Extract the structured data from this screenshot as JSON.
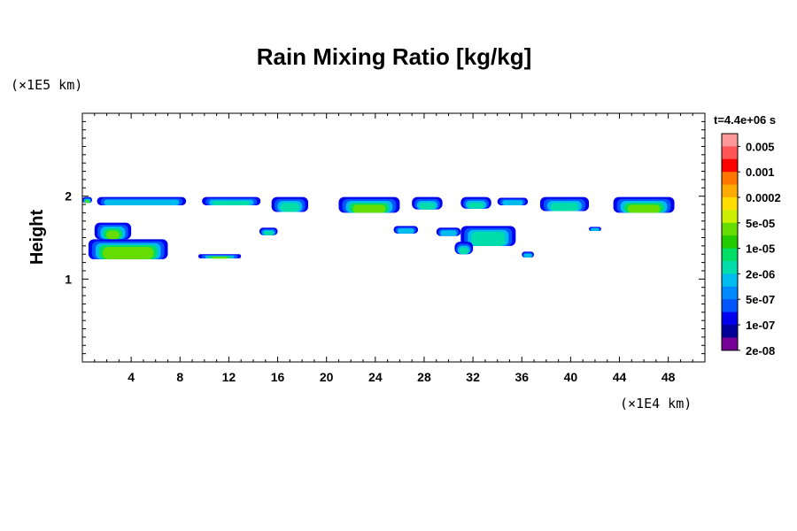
{
  "chart_data": {
    "type": "heatmap",
    "title": "Rain Mixing Ratio [kg/kg]",
    "ylabel": "Height",
    "y_unit": "(×1E5 km)",
    "x_unit": "(×1E4 km)",
    "time_label": "t=4.4e+06 s",
    "xlim": [
      0,
      51
    ],
    "ylim": [
      0,
      3
    ],
    "x_ticks": [
      "4",
      "8",
      "12",
      "16",
      "20",
      "24",
      "28",
      "32",
      "36",
      "40",
      "44",
      "48"
    ],
    "y_ticks": [
      "1",
      "2"
    ],
    "colorbar": {
      "colors": [
        "#ff9999",
        "#ff5555",
        "#ff0000",
        "#ff7700",
        "#ffaa00",
        "#ffdd00",
        "#ccee00",
        "#66dd00",
        "#22cc00",
        "#00dd66",
        "#00ddaa",
        "#00bbee",
        "#0088ff",
        "#0055ff",
        "#0000ee",
        "#000099",
        "#770099"
      ],
      "labels": [
        "0.005",
        "0.001",
        "0.0002",
        "5e-05",
        "1e-05",
        "2e-06",
        "5e-07",
        "1e-07",
        "2e-08"
      ]
    },
    "features": [
      {
        "x0": 0.0,
        "x1": 0.8,
        "y0": 1.92,
        "y1": 1.99,
        "level": "high"
      },
      {
        "x0": 1.2,
        "x1": 8.5,
        "y0": 1.89,
        "y1": 1.99,
        "level": "low"
      },
      {
        "x0": 9.8,
        "x1": 14.6,
        "y0": 1.89,
        "y1": 1.99,
        "level": "mid"
      },
      {
        "x0": 15.5,
        "x1": 18.5,
        "y0": 1.81,
        "y1": 1.99,
        "level": "mid"
      },
      {
        "x0": 21.0,
        "x1": 26.0,
        "y0": 1.8,
        "y1": 1.99,
        "level": "high"
      },
      {
        "x0": 27.0,
        "x1": 29.5,
        "y0": 1.84,
        "y1": 1.99,
        "level": "mid"
      },
      {
        "x0": 31.0,
        "x1": 33.5,
        "y0": 1.85,
        "y1": 1.99,
        "level": "mid"
      },
      {
        "x0": 34.0,
        "x1": 36.5,
        "y0": 1.89,
        "y1": 1.98,
        "level": "low"
      },
      {
        "x0": 37.5,
        "x1": 41.5,
        "y0": 1.82,
        "y1": 1.99,
        "level": "mid"
      },
      {
        "x0": 43.5,
        "x1": 48.5,
        "y0": 1.8,
        "y1": 1.99,
        "level": "high"
      },
      {
        "x0": 1.0,
        "x1": 4.0,
        "y0": 1.48,
        "y1": 1.68,
        "level": "high"
      },
      {
        "x0": 0.5,
        "x1": 7.0,
        "y0": 1.24,
        "y1": 1.48,
        "level": "high"
      },
      {
        "x0": 9.5,
        "x1": 13.0,
        "y0": 1.25,
        "y1": 1.3,
        "level": "high"
      },
      {
        "x0": 14.5,
        "x1": 16.0,
        "y0": 1.53,
        "y1": 1.62,
        "level": "mid"
      },
      {
        "x0": 25.5,
        "x1": 27.5,
        "y0": 1.55,
        "y1": 1.64,
        "level": "low"
      },
      {
        "x0": 29.0,
        "x1": 31.0,
        "y0": 1.52,
        "y1": 1.62,
        "level": "low"
      },
      {
        "x0": 31.0,
        "x1": 35.5,
        "y0": 1.4,
        "y1": 1.64,
        "level": "mid"
      },
      {
        "x0": 30.5,
        "x1": 32.0,
        "y0": 1.3,
        "y1": 1.45,
        "level": "mid"
      },
      {
        "x0": 36.0,
        "x1": 37.0,
        "y0": 1.26,
        "y1": 1.33,
        "level": "low"
      },
      {
        "x0": 41.5,
        "x1": 42.5,
        "y0": 1.58,
        "y1": 1.63,
        "level": "low"
      }
    ]
  }
}
